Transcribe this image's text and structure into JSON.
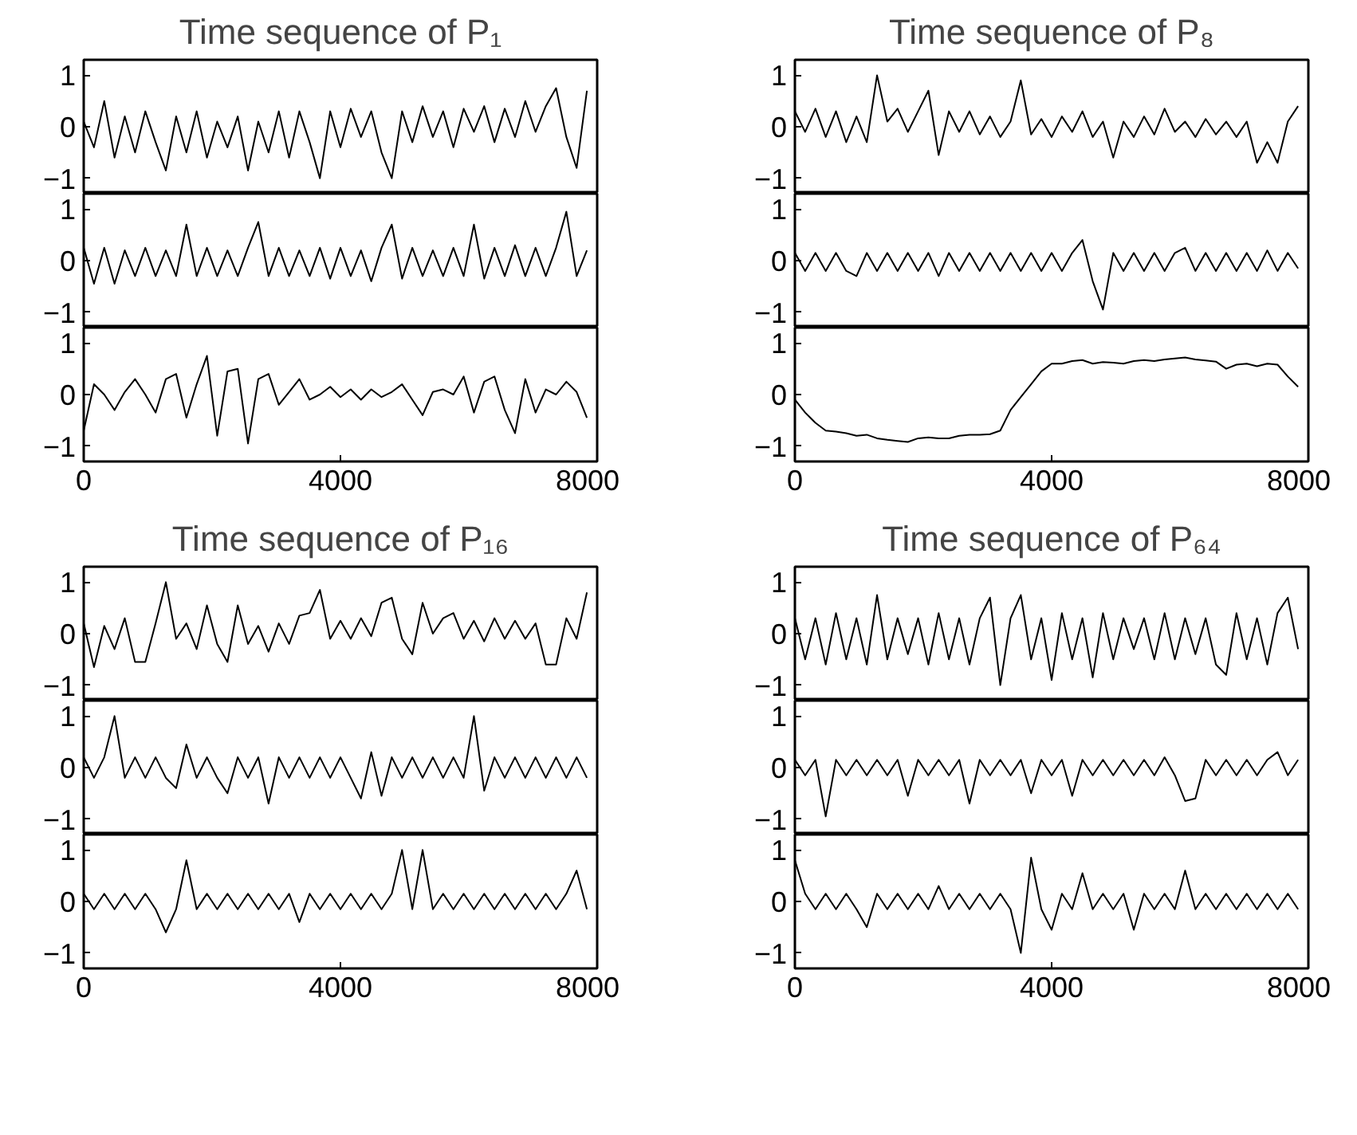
{
  "chart_data": [
    {
      "type": "line",
      "title": "Time sequence of P₁",
      "color": "#000000",
      "xlim": [
        0,
        8000
      ],
      "xticks": [
        0,
        4000,
        8000
      ],
      "ylim": [
        -1.3,
        1.3
      ],
      "yticks": [
        -1,
        0,
        1
      ],
      "tick_labels": "y",
      "x": [
        0,
        160,
        320,
        480,
        640,
        800,
        960,
        1120,
        1280,
        1440,
        1600,
        1760,
        1920,
        2080,
        2240,
        2400,
        2560,
        2720,
        2880,
        3040,
        3200,
        3360,
        3520,
        3680,
        3840,
        4000,
        4160,
        4320,
        4480,
        4640,
        4800,
        4960,
        5120,
        5280,
        5440,
        5600,
        5760,
        5920,
        6080,
        6240,
        6400,
        6560,
        6720,
        6880,
        7040,
        7200,
        7360,
        7520,
        7680,
        7840
      ],
      "values": [
        0.1,
        -0.4,
        0.5,
        -0.6,
        0.2,
        -0.5,
        0.3,
        -0.3,
        -0.85,
        0.2,
        -0.5,
        0.3,
        -0.6,
        0.1,
        -0.4,
        0.2,
        -0.85,
        0.1,
        -0.5,
        0.3,
        -0.6,
        0.3,
        -0.3,
        -1.0,
        0.3,
        -0.4,
        0.35,
        -0.2,
        0.3,
        -0.5,
        -1.0,
        0.3,
        -0.3,
        0.4,
        -0.2,
        0.3,
        -0.4,
        0.35,
        -0.1,
        0.4,
        -0.3,
        0.35,
        -0.2,
        0.5,
        -0.1,
        0.4,
        0.75,
        -0.2,
        -0.8,
        0.7
      ]
    },
    {
      "type": "line",
      "color": "#000000",
      "xlim": [
        0,
        8000
      ],
      "xticks": [
        0,
        4000,
        8000
      ],
      "ylim": [
        -1.3,
        1.3
      ],
      "yticks": [
        -1,
        0,
        1
      ],
      "tick_labels": "y",
      "x": [
        0,
        160,
        320,
        480,
        640,
        800,
        960,
        1120,
        1280,
        1440,
        1600,
        1760,
        1920,
        2080,
        2240,
        2400,
        2560,
        2720,
        2880,
        3040,
        3200,
        3360,
        3520,
        3680,
        3840,
        4000,
        4160,
        4320,
        4480,
        4640,
        4800,
        4960,
        5120,
        5280,
        5440,
        5600,
        5760,
        5920,
        6080,
        6240,
        6400,
        6560,
        6720,
        6880,
        7040,
        7200,
        7360,
        7520,
        7680,
        7840
      ],
      "values": [
        0.25,
        -0.45,
        0.25,
        -0.45,
        0.2,
        -0.3,
        0.25,
        -0.3,
        0.2,
        -0.3,
        0.7,
        -0.3,
        0.25,
        -0.3,
        0.2,
        -0.3,
        0.25,
        0.75,
        -0.3,
        0.25,
        -0.3,
        0.2,
        -0.3,
        0.25,
        -0.35,
        0.25,
        -0.3,
        0.2,
        -0.4,
        0.25,
        0.7,
        -0.35,
        0.25,
        -0.3,
        0.2,
        -0.3,
        0.25,
        -0.3,
        0.7,
        -0.35,
        0.25,
        -0.3,
        0.3,
        -0.3,
        0.25,
        -0.3,
        0.25,
        0.95,
        -0.3,
        0.2
      ]
    },
    {
      "type": "line",
      "color": "#000000",
      "xlim": [
        0,
        8000
      ],
      "xticks": [
        0,
        4000,
        8000
      ],
      "ylim": [
        -1.3,
        1.3
      ],
      "yticks": [
        -1,
        0,
        1
      ],
      "x": [
        0,
        160,
        320,
        480,
        640,
        800,
        960,
        1120,
        1280,
        1440,
        1600,
        1760,
        1920,
        2080,
        2240,
        2400,
        2560,
        2720,
        2880,
        3040,
        3200,
        3360,
        3520,
        3680,
        3840,
        4000,
        4160,
        4320,
        4480,
        4640,
        4800,
        4960,
        5120,
        5280,
        5440,
        5600,
        5760,
        5920,
        6080,
        6240,
        6400,
        6560,
        6720,
        6880,
        7040,
        7200,
        7360,
        7520,
        7680,
        7840
      ],
      "values": [
        -0.7,
        0.2,
        0.0,
        -0.3,
        0.05,
        0.3,
        0.0,
        -0.35,
        0.3,
        0.4,
        -0.45,
        0.2,
        0.75,
        -0.8,
        0.45,
        0.5,
        -0.95,
        0.3,
        0.4,
        -0.2,
        0.05,
        0.3,
        -0.1,
        0.0,
        0.15,
        -0.05,
        0.1,
        -0.1,
        0.1,
        -0.05,
        0.05,
        0.2,
        -0.1,
        -0.4,
        0.05,
        0.1,
        0.0,
        0.35,
        -0.35,
        0.25,
        0.35,
        -0.3,
        -0.75,
        0.3,
        -0.35,
        0.1,
        0.0,
        0.25,
        0.05,
        -0.45
      ]
    },
    {
      "type": "line",
      "title": "Time sequence of P₈",
      "color": "#000000",
      "xlim": [
        0,
        8000
      ],
      "xticks": [
        0,
        4000,
        8000
      ],
      "ylim": [
        -1.3,
        1.3
      ],
      "yticks": [
        -1,
        0,
        1
      ],
      "tick_labels": "y",
      "x": [
        0,
        160,
        320,
        480,
        640,
        800,
        960,
        1120,
        1280,
        1440,
        1600,
        1760,
        1920,
        2080,
        2240,
        2400,
        2560,
        2720,
        2880,
        3040,
        3200,
        3360,
        3520,
        3680,
        3840,
        4000,
        4160,
        4320,
        4480,
        4640,
        4800,
        4960,
        5120,
        5280,
        5440,
        5600,
        5760,
        5920,
        6080,
        6240,
        6400,
        6560,
        6720,
        6880,
        7040,
        7200,
        7360,
        7520,
        7680,
        7840
      ],
      "values": [
        0.3,
        -0.1,
        0.35,
        -0.2,
        0.3,
        -0.3,
        0.2,
        -0.3,
        1.0,
        0.1,
        0.35,
        -0.1,
        0.3,
        0.7,
        -0.55,
        0.3,
        -0.1,
        0.3,
        -0.15,
        0.2,
        -0.2,
        0.1,
        0.9,
        -0.15,
        0.15,
        -0.2,
        0.2,
        -0.1,
        0.3,
        -0.2,
        0.1,
        -0.6,
        0.1,
        -0.2,
        0.2,
        -0.15,
        0.35,
        -0.1,
        0.1,
        -0.2,
        0.15,
        -0.15,
        0.1,
        -0.2,
        0.1,
        -0.7,
        -0.3,
        -0.7,
        0.1,
        0.4
      ]
    },
    {
      "type": "line",
      "color": "#000000",
      "xlim": [
        0,
        8000
      ],
      "xticks": [
        0,
        4000,
        8000
      ],
      "ylim": [
        -1.3,
        1.3
      ],
      "yticks": [
        -1,
        0,
        1
      ],
      "tick_labels": "y",
      "x": [
        0,
        160,
        320,
        480,
        640,
        800,
        960,
        1120,
        1280,
        1440,
        1600,
        1760,
        1920,
        2080,
        2240,
        2400,
        2560,
        2720,
        2880,
        3040,
        3200,
        3360,
        3520,
        3680,
        3840,
        4000,
        4160,
        4320,
        4480,
        4640,
        4800,
        4960,
        5120,
        5280,
        5440,
        5600,
        5760,
        5920,
        6080,
        6240,
        6400,
        6560,
        6720,
        6880,
        7040,
        7200,
        7360,
        7520,
        7680,
        7840
      ],
      "values": [
        0.15,
        -0.2,
        0.15,
        -0.2,
        0.15,
        -0.2,
        -0.3,
        0.15,
        -0.2,
        0.15,
        -0.2,
        0.15,
        -0.2,
        0.15,
        -0.3,
        0.15,
        -0.2,
        0.15,
        -0.2,
        0.15,
        -0.2,
        0.15,
        -0.2,
        0.15,
        -0.2,
        0.15,
        -0.2,
        0.15,
        0.4,
        -0.4,
        -0.95,
        0.15,
        -0.2,
        0.15,
        -0.2,
        0.15,
        -0.2,
        0.15,
        0.25,
        -0.2,
        0.15,
        -0.2,
        0.15,
        -0.2,
        0.15,
        -0.2,
        0.2,
        -0.2,
        0.15,
        -0.15
      ]
    },
    {
      "type": "line",
      "color": "#000000",
      "xlim": [
        0,
        8000
      ],
      "xticks": [
        0,
        4000,
        8000
      ],
      "ylim": [
        -1.3,
        1.3
      ],
      "yticks": [
        -1,
        0,
        1
      ],
      "x": [
        0,
        160,
        320,
        480,
        640,
        800,
        960,
        1120,
        1280,
        1440,
        1600,
        1760,
        1920,
        2080,
        2240,
        2400,
        2560,
        2720,
        2880,
        3040,
        3200,
        3360,
        3520,
        3680,
        3840,
        4000,
        4160,
        4320,
        4480,
        4640,
        4800,
        4960,
        5120,
        5280,
        5440,
        5600,
        5760,
        5920,
        6080,
        6240,
        6400,
        6560,
        6720,
        6880,
        7040,
        7200,
        7360,
        7520,
        7680,
        7840
      ],
      "values": [
        -0.1,
        -0.35,
        -0.55,
        -0.7,
        -0.72,
        -0.75,
        -0.8,
        -0.78,
        -0.85,
        -0.88,
        -0.9,
        -0.92,
        -0.85,
        -0.83,
        -0.85,
        -0.85,
        -0.8,
        -0.78,
        -0.78,
        -0.77,
        -0.7,
        -0.3,
        -0.05,
        0.2,
        0.45,
        0.6,
        0.6,
        0.65,
        0.67,
        0.6,
        0.63,
        0.62,
        0.6,
        0.65,
        0.67,
        0.65,
        0.68,
        0.7,
        0.72,
        0.68,
        0.66,
        0.64,
        0.5,
        0.58,
        0.6,
        0.55,
        0.6,
        0.58,
        0.35,
        0.15
      ]
    },
    {
      "type": "line",
      "title": "Time sequence of P₁₆",
      "color": "#000000",
      "xlim": [
        0,
        8000
      ],
      "xticks": [
        0,
        4000,
        8000
      ],
      "ylim": [
        -1.3,
        1.3
      ],
      "yticks": [
        -1,
        0,
        1
      ],
      "tick_labels": "y",
      "x": [
        0,
        160,
        320,
        480,
        640,
        800,
        960,
        1120,
        1280,
        1440,
        1600,
        1760,
        1920,
        2080,
        2240,
        2400,
        2560,
        2720,
        2880,
        3040,
        3200,
        3360,
        3520,
        3680,
        3840,
        4000,
        4160,
        4320,
        4480,
        4640,
        4800,
        4960,
        5120,
        5280,
        5440,
        5600,
        5760,
        5920,
        6080,
        6240,
        6400,
        6560,
        6720,
        6880,
        7040,
        7200,
        7360,
        7520,
        7680,
        7840
      ],
      "values": [
        0.2,
        -0.65,
        0.15,
        -0.3,
        0.3,
        -0.55,
        -0.55,
        0.2,
        1.0,
        -0.1,
        0.2,
        -0.3,
        0.55,
        -0.2,
        -0.55,
        0.55,
        -0.2,
        0.15,
        -0.35,
        0.2,
        -0.2,
        0.35,
        0.4,
        0.85,
        -0.1,
        0.25,
        -0.1,
        0.3,
        -0.05,
        0.6,
        0.7,
        -0.1,
        -0.4,
        0.6,
        0.0,
        0.3,
        0.4,
        -0.1,
        0.25,
        -0.15,
        0.3,
        -0.1,
        0.25,
        -0.1,
        0.2,
        -0.6,
        -0.6,
        0.3,
        -0.1,
        0.8
      ]
    },
    {
      "type": "line",
      "color": "#000000",
      "xlim": [
        0,
        8000
      ],
      "xticks": [
        0,
        4000,
        8000
      ],
      "ylim": [
        -1.3,
        1.3
      ],
      "yticks": [
        -1,
        0,
        1
      ],
      "tick_labels": "y",
      "x": [
        0,
        160,
        320,
        480,
        640,
        800,
        960,
        1120,
        1280,
        1440,
        1600,
        1760,
        1920,
        2080,
        2240,
        2400,
        2560,
        2720,
        2880,
        3040,
        3200,
        3360,
        3520,
        3680,
        3840,
        4000,
        4160,
        4320,
        4480,
        4640,
        4800,
        4960,
        5120,
        5280,
        5440,
        5600,
        5760,
        5920,
        6080,
        6240,
        6400,
        6560,
        6720,
        6880,
        7040,
        7200,
        7360,
        7520,
        7680,
        7840
      ],
      "values": [
        0.2,
        -0.2,
        0.2,
        1.0,
        -0.2,
        0.2,
        -0.2,
        0.2,
        -0.2,
        -0.4,
        0.45,
        -0.2,
        0.2,
        -0.2,
        -0.5,
        0.2,
        -0.2,
        0.2,
        -0.7,
        0.2,
        -0.2,
        0.2,
        -0.2,
        0.2,
        -0.2,
        0.2,
        -0.2,
        -0.6,
        0.3,
        -0.55,
        0.2,
        -0.2,
        0.2,
        -0.2,
        0.2,
        -0.2,
        0.2,
        -0.2,
        1.0,
        -0.45,
        0.2,
        -0.2,
        0.2,
        -0.2,
        0.2,
        -0.2,
        0.2,
        -0.2,
        0.2,
        -0.2
      ]
    },
    {
      "type": "line",
      "color": "#000000",
      "xlim": [
        0,
        8000
      ],
      "xticks": [
        0,
        4000,
        8000
      ],
      "ylim": [
        -1.3,
        1.3
      ],
      "yticks": [
        -1,
        0,
        1
      ],
      "x": [
        0,
        160,
        320,
        480,
        640,
        800,
        960,
        1120,
        1280,
        1440,
        1600,
        1760,
        1920,
        2080,
        2240,
        2400,
        2560,
        2720,
        2880,
        3040,
        3200,
        3360,
        3520,
        3680,
        3840,
        4000,
        4160,
        4320,
        4480,
        4640,
        4800,
        4960,
        5120,
        5280,
        5440,
        5600,
        5760,
        5920,
        6080,
        6240,
        6400,
        6560,
        6720,
        6880,
        7040,
        7200,
        7360,
        7520,
        7680,
        7840
      ],
      "values": [
        0.15,
        -0.15,
        0.15,
        -0.15,
        0.15,
        -0.15,
        0.15,
        -0.15,
        -0.6,
        -0.15,
        0.8,
        -0.15,
        0.15,
        -0.15,
        0.15,
        -0.15,
        0.15,
        -0.15,
        0.15,
        -0.15,
        0.15,
        -0.4,
        0.15,
        -0.15,
        0.15,
        -0.15,
        0.15,
        -0.15,
        0.15,
        -0.15,
        0.15,
        1.0,
        -0.15,
        1.0,
        -0.15,
        0.15,
        -0.15,
        0.15,
        -0.15,
        0.15,
        -0.15,
        0.15,
        -0.15,
        0.15,
        -0.15,
        0.15,
        -0.15,
        0.15,
        0.6,
        -0.15
      ]
    },
    {
      "type": "line",
      "title": "Time sequence of P₆₄",
      "color": "#000000",
      "xlim": [
        0,
        8000
      ],
      "xticks": [
        0,
        4000,
        8000
      ],
      "ylim": [
        -1.3,
        1.3
      ],
      "yticks": [
        -1,
        0,
        1
      ],
      "tick_labels": "y",
      "x": [
        0,
        160,
        320,
        480,
        640,
        800,
        960,
        1120,
        1280,
        1440,
        1600,
        1760,
        1920,
        2080,
        2240,
        2400,
        2560,
        2720,
        2880,
        3040,
        3200,
        3360,
        3520,
        3680,
        3840,
        4000,
        4160,
        4320,
        4480,
        4640,
        4800,
        4960,
        5120,
        5280,
        5440,
        5600,
        5760,
        5920,
        6080,
        6240,
        6400,
        6560,
        6720,
        6880,
        7040,
        7200,
        7360,
        7520,
        7680,
        7840
      ],
      "values": [
        0.3,
        -0.5,
        0.3,
        -0.6,
        0.4,
        -0.5,
        0.3,
        -0.6,
        0.75,
        -0.5,
        0.3,
        -0.4,
        0.3,
        -0.6,
        0.4,
        -0.5,
        0.3,
        -0.6,
        0.3,
        0.7,
        -1.0,
        0.3,
        0.75,
        -0.5,
        0.3,
        -0.9,
        0.4,
        -0.5,
        0.3,
        -0.85,
        0.4,
        -0.5,
        0.3,
        -0.3,
        0.3,
        -0.5,
        0.4,
        -0.5,
        0.3,
        -0.4,
        0.3,
        -0.6,
        -0.8,
        0.4,
        -0.5,
        0.3,
        -0.6,
        0.4,
        0.7,
        -0.3
      ]
    },
    {
      "type": "line",
      "color": "#000000",
      "xlim": [
        0,
        8000
      ],
      "xticks": [
        0,
        4000,
        8000
      ],
      "ylim": [
        -1.3,
        1.3
      ],
      "yticks": [
        -1,
        0,
        1
      ],
      "tick_labels": "y",
      "x": [
        0,
        160,
        320,
        480,
        640,
        800,
        960,
        1120,
        1280,
        1440,
        1600,
        1760,
        1920,
        2080,
        2240,
        2400,
        2560,
        2720,
        2880,
        3040,
        3200,
        3360,
        3520,
        3680,
        3840,
        4000,
        4160,
        4320,
        4480,
        4640,
        4800,
        4960,
        5120,
        5280,
        5440,
        5600,
        5760,
        5920,
        6080,
        6240,
        6400,
        6560,
        6720,
        6880,
        7040,
        7200,
        7360,
        7520,
        7680,
        7840
      ],
      "values": [
        0.15,
        -0.15,
        0.15,
        -0.95,
        0.15,
        -0.15,
        0.15,
        -0.15,
        0.15,
        -0.15,
        0.15,
        -0.55,
        0.15,
        -0.15,
        0.15,
        -0.15,
        0.15,
        -0.7,
        0.15,
        -0.15,
        0.15,
        -0.15,
        0.15,
        -0.5,
        0.15,
        -0.15,
        0.15,
        -0.55,
        0.15,
        -0.15,
        0.15,
        -0.15,
        0.15,
        -0.15,
        0.15,
        -0.15,
        0.2,
        -0.15,
        -0.65,
        -0.6,
        0.15,
        -0.15,
        0.15,
        -0.15,
        0.15,
        -0.15,
        0.15,
        0.3,
        -0.15,
        0.15
      ]
    },
    {
      "type": "line",
      "color": "#000000",
      "xlim": [
        0,
        8000
      ],
      "xticks": [
        0,
        4000,
        8000
      ],
      "ylim": [
        -1.3,
        1.3
      ],
      "yticks": [
        -1,
        0,
        1
      ],
      "x": [
        0,
        160,
        320,
        480,
        640,
        800,
        960,
        1120,
        1280,
        1440,
        1600,
        1760,
        1920,
        2080,
        2240,
        2400,
        2560,
        2720,
        2880,
        3040,
        3200,
        3360,
        3520,
        3680,
        3840,
        4000,
        4160,
        4320,
        4480,
        4640,
        4800,
        4960,
        5120,
        5280,
        5440,
        5600,
        5760,
        5920,
        6080,
        6240,
        6400,
        6560,
        6720,
        6880,
        7040,
        7200,
        7360,
        7520,
        7680,
        7840
      ],
      "values": [
        0.8,
        0.15,
        -0.15,
        0.15,
        -0.15,
        0.15,
        -0.15,
        -0.5,
        0.15,
        -0.15,
        0.15,
        -0.15,
        0.15,
        -0.15,
        0.3,
        -0.15,
        0.15,
        -0.15,
        0.15,
        -0.15,
        0.15,
        -0.15,
        -1.0,
        0.85,
        -0.15,
        -0.55,
        0.15,
        -0.15,
        0.55,
        -0.15,
        0.15,
        -0.15,
        0.15,
        -0.55,
        0.15,
        -0.15,
        0.15,
        -0.15,
        0.6,
        -0.15,
        0.15,
        -0.15,
        0.15,
        -0.15,
        0.15,
        -0.15,
        0.15,
        -0.15,
        0.15,
        -0.15
      ]
    }
  ]
}
